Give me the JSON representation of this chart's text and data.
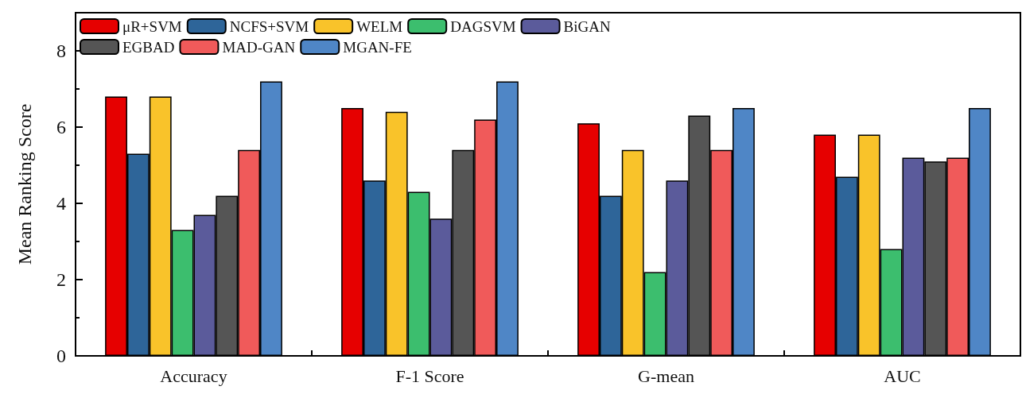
{
  "chart_data": {
    "type": "bar",
    "ylabel": "Mean Ranking Score",
    "categories": [
      "Accuracy",
      "F-1 Score",
      "G-mean",
      "AUC"
    ],
    "ylim": [
      0,
      9
    ],
    "yticks": [
      0,
      2,
      4,
      6,
      8
    ],
    "grid": false,
    "legend": "top left",
    "series": [
      {
        "name": "μR+SVM",
        "color": "#e60000",
        "values": [
          6.8,
          6.5,
          6.1,
          5.8
        ]
      },
      {
        "name": "NCFS+SVM",
        "color": "#2e6599",
        "values": [
          5.3,
          4.6,
          4.2,
          4.7
        ]
      },
      {
        "name": "WELM",
        "color": "#f9c32a",
        "values": [
          6.8,
          6.4,
          5.4,
          5.8
        ]
      },
      {
        "name": "DAGSVM",
        "color": "#3cbe6e",
        "values": [
          3.3,
          4.3,
          2.2,
          2.8
        ]
      },
      {
        "name": "BiGAN",
        "color": "#5b5b9b",
        "values": [
          3.7,
          3.6,
          4.6,
          5.2
        ]
      },
      {
        "name": "EGBAD",
        "color": "#555555",
        "values": [
          4.2,
          5.4,
          6.3,
          5.1
        ]
      },
      {
        "name": "MAD-GAN",
        "color": "#f05a5a",
        "values": [
          5.4,
          6.2,
          5.4,
          5.2
        ]
      },
      {
        "name": "MGAN-FE",
        "color": "#4f86c6",
        "values": [
          7.2,
          7.2,
          6.5,
          6.5
        ]
      }
    ]
  }
}
